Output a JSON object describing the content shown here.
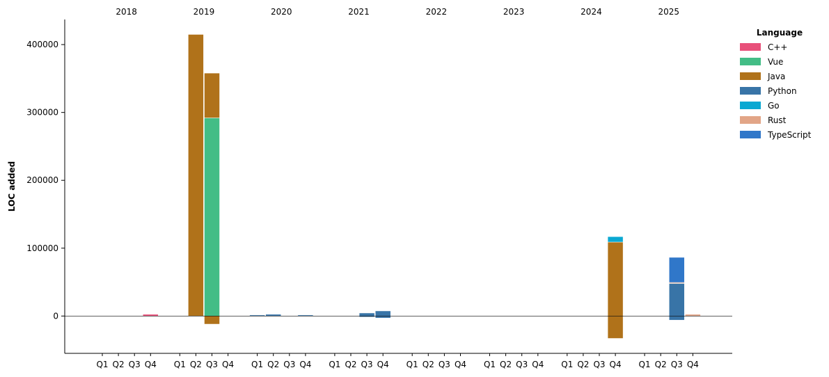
{
  "chart_data": {
    "type": "bar",
    "stacked": true,
    "ylabel": "LOC added",
    "xlabel": "",
    "ylim": [
      -55000,
      437000
    ],
    "yticks": [
      0,
      100000,
      200000,
      300000,
      400000
    ],
    "years": [
      "2018",
      "2019",
      "2020",
      "2021",
      "2022",
      "2023",
      "2024",
      "2025"
    ],
    "quarters": [
      "Q1",
      "Q2",
      "Q3",
      "Q4"
    ],
    "legend": {
      "title": "Language",
      "placement": "top-right",
      "entries": [
        {
          "name": "C++",
          "color": "#e8507a"
        },
        {
          "name": "Vue",
          "color": "#43bd86"
        },
        {
          "name": "Java",
          "color": "#b0721a"
        },
        {
          "name": "Python",
          "color": "#3874a7"
        },
        {
          "name": "Go",
          "color": "#0aa8d2"
        },
        {
          "name": "Rust",
          "color": "#e2a587"
        },
        {
          "name": "TypeScript",
          "color": "#3077c9"
        }
      ]
    },
    "bars": [
      {
        "year": "2018",
        "quarter": "Q4",
        "segments": [
          {
            "lang": "C++",
            "value": 2500
          }
        ]
      },
      {
        "year": "2019",
        "quarter": "Q2",
        "segments": [
          {
            "lang": "Java",
            "value": 415000
          }
        ]
      },
      {
        "year": "2019",
        "quarter": "Q3",
        "segments": [
          {
            "lang": "Vue",
            "value": 292000
          },
          {
            "lang": "Java",
            "value": 66000
          },
          {
            "lang": "Java",
            "value": -12000
          }
        ]
      },
      {
        "year": "2020",
        "quarter": "Q1",
        "segments": [
          {
            "lang": "Python",
            "value": 1500
          }
        ]
      },
      {
        "year": "2020",
        "quarter": "Q2",
        "segments": [
          {
            "lang": "Python",
            "value": 2500
          }
        ]
      },
      {
        "year": "2020",
        "quarter": "Q4",
        "segments": [
          {
            "lang": "Python",
            "value": 1500
          }
        ]
      },
      {
        "year": "2021",
        "quarter": "Q3",
        "segments": [
          {
            "lang": "Python",
            "value": 4500
          },
          {
            "lang": "Python",
            "value": -1500
          }
        ]
      },
      {
        "year": "2021",
        "quarter": "Q4",
        "segments": [
          {
            "lang": "Python",
            "value": 7500
          },
          {
            "lang": "Python",
            "value": -3000
          }
        ]
      },
      {
        "year": "2024",
        "quarter": "Q4",
        "segments": [
          {
            "lang": "Java",
            "value": 109000
          },
          {
            "lang": "Go",
            "value": 8000
          },
          {
            "lang": "Java",
            "value": -33000
          }
        ]
      },
      {
        "year": "2025",
        "quarter": "Q3",
        "segments": [
          {
            "lang": "Python",
            "value": 48000
          },
          {
            "lang": "Rust",
            "value": 1500
          },
          {
            "lang": "TypeScript",
            "value": 37000
          },
          {
            "lang": "Python",
            "value": -6000
          }
        ]
      },
      {
        "year": "2025",
        "quarter": "Q4",
        "segments": [
          {
            "lang": "Rust",
            "value": 2500
          }
        ]
      }
    ]
  }
}
